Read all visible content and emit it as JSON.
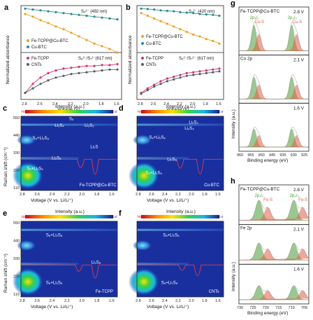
{
  "panels": {
    "a": {
      "letter": "a",
      "ylabel": "Normalized absorbance",
      "xlabel": "Voltage (V)",
      "xticks": [
        "2.8",
        "2.6",
        "2.4",
        "2.2",
        "2.0",
        "1.8",
        "1.6"
      ],
      "top_annotation": "S₆²⁻ (492 nm)",
      "bottom_annotation": "S₈²⁻/S₇²⁻(617 nm)",
      "legend_top": [
        "Fe-TCPP@Cu-BTC",
        "Cu-BTC"
      ],
      "legend_bottom": [
        "Fe-TCPP",
        "CNTs"
      ]
    },
    "b": {
      "letter": "b",
      "ylabel": "Normalized absorbance",
      "xlabel": "Voltage (V)",
      "xticks": [
        "2.8",
        "2.6",
        "2.4",
        "2.2",
        "2.0",
        "1.8",
        "1.6"
      ],
      "top_annotation": "S₃²⁻ (420 nm)",
      "bottom_annotation": "S₈²⁻/S₇²⁻ (617 nm)",
      "legend_top": [
        "Fe-TCPP@Cu-BTC",
        "Cu-BTC"
      ],
      "legend_bottom": [
        "Fe-TCPP",
        "CNTs"
      ]
    },
    "c": {
      "letter": "c",
      "title": "Intensity (a.u.)",
      "cb_min": "755.0",
      "cb_max": "0.0",
      "ylabel": "Raman shift (cm⁻¹)",
      "xlabel": "Voltage (V vs. Li/Li⁺)",
      "yticks": [
        "550",
        "440",
        "330",
        "220",
        "110"
      ],
      "xticks": [
        "2.8",
        "2.6",
        "2.4",
        "2.2",
        "2.0",
        "1.8",
        "1.6"
      ],
      "labels": [
        "S₈",
        "Li₂S₄",
        "Li₂S₃",
        "S₈+Li₂S₈",
        "Li₂S",
        "Li₂S₈",
        "S₈+Li₂S₈"
      ],
      "sample": "Fe-TCPP@Cu-BTC"
    },
    "d": {
      "letter": "d",
      "title": "Intensity (a.u.)",
      "cb_min": "755.0",
      "cb_max": "0.0",
      "xlabel": "Voltage (V vs. Li/Li⁺)",
      "xticks": [
        "2.8",
        "2.6",
        "2.4",
        "2.2",
        "2.0",
        "1.8",
        "1.6"
      ],
      "labels": [
        "Li₂S₂",
        "Li₂S₄",
        "S₈+Li₂S₈",
        "Li₂S₈",
        "S₈+Li₂S₈"
      ],
      "sample": "Cu-BTC"
    },
    "e": {
      "letter": "e",
      "title": "Intensity (a.u.)",
      "cb_min": "755.0",
      "cb_max": "0.0",
      "ylabel": "Raman shift (cm⁻¹)",
      "xlabel": "Voltage (V vs. Li/Li⁺)",
      "yticks": [
        "550",
        "440",
        "330",
        "220",
        "110"
      ],
      "xticks": [
        "2.8",
        "2.6",
        "2.4",
        "2.2",
        "2.0",
        "1.8",
        "1.6"
      ],
      "labels": [
        "S₈+Li₂S₈",
        "Li₂S₈",
        "S₈+Li₂S₈"
      ],
      "sample": "Fe-TCPP"
    },
    "f": {
      "letter": "f",
      "title": "Intensity (a.u.)",
      "cb_min": "755.0",
      "cb_max": "0.0",
      "xlabel": "Voltage (V vs. Li/Li⁺)",
      "xticks": [
        "2.8",
        "2.6",
        "2.4",
        "2.2",
        "2.0",
        "1.8",
        "1.6"
      ],
      "labels": [
        "S₈+Li₂S₈",
        "S₈+Li₂S₈"
      ],
      "sample": "CNTs"
    },
    "g": {
      "letter": "g",
      "header": "Fe-TCPP@Cu-BTC",
      "voltages": [
        "2.8 V",
        "2.1 V",
        "1.6 V"
      ],
      "element": "Cu 2p",
      "peaks": [
        "2p₁/₂",
        "Cu-S",
        "2p₃/₂",
        "Cu-S"
      ],
      "ylabel": "Intensity (a.u.)",
      "xlabel": "Binding energy (eV)",
      "xticks": [
        "960",
        "955",
        "950",
        "945",
        "935",
        "930",
        "925"
      ]
    },
    "h": {
      "letter": "h",
      "header": "Fe-TCPP@Cu-BTC",
      "voltages": [
        "2.8 V",
        "2.1 V",
        "1.6 V"
      ],
      "element": "Fe 2p",
      "peaks": [
        "2p₁/₂",
        "Fe-S",
        "2p₃/₂",
        "Fe-S"
      ],
      "ylabel": "Intensity (a.u.)",
      "xlabel": "Binding energy (eV)",
      "xticks": [
        "730",
        "725",
        "720",
        "715",
        "710",
        "705"
      ]
    }
  },
  "colors": {
    "fe_tcpp_cu_btc": "#e8a321",
    "cu_btc": "#2a8c8c",
    "fe_tcpp": "#d2336e",
    "cnts": "#555a66",
    "xps_green": "#4a9a3a",
    "xps_red": "#e0604a"
  },
  "chart_data": [
    {
      "type": "line",
      "panel": "a",
      "x": [
        2.8,
        2.7,
        2.6,
        2.5,
        2.4,
        2.3,
        2.2,
        2.1,
        2.0,
        1.9,
        1.8,
        1.7,
        1.6
      ],
      "series": [
        {
          "name": "Fe-TCPP@Cu-BTC",
          "values": [
            0.93,
            0.9,
            0.86,
            0.83,
            0.79,
            0.76,
            0.72,
            0.68,
            0.64,
            0.6,
            0.57,
            0.54,
            0.5
          ]
        },
        {
          "name": "Cu-BTC",
          "values": [
            0.99,
            0.98,
            0.97,
            0.96,
            0.95,
            0.94,
            0.93,
            0.92,
            0.91,
            0.9,
            0.89,
            0.88,
            0.87
          ]
        },
        {
          "name": "Fe-TCPP",
          "values": [
            0.05,
            0.15,
            0.22,
            0.27,
            0.3,
            0.32,
            0.33,
            0.34,
            0.35,
            0.35,
            0.36,
            0.36,
            0.37
          ]
        },
        {
          "name": "CNTs",
          "values": [
            0.05,
            0.1,
            0.15,
            0.19,
            0.22,
            0.24,
            0.26,
            0.27,
            0.28,
            0.29,
            0.3,
            0.31,
            0.31
          ]
        }
      ]
    },
    {
      "type": "line",
      "panel": "b",
      "x": [
        2.8,
        2.7,
        2.6,
        2.5,
        2.4,
        2.3,
        2.2,
        2.1,
        2.0,
        1.9,
        1.8,
        1.7,
        1.6
      ],
      "series": [
        {
          "name": "Fe-TCPP@Cu-BTC",
          "values": [
            0.94,
            0.91,
            0.88,
            0.85,
            0.82,
            0.79,
            0.76,
            0.73,
            0.7,
            0.68,
            0.65,
            0.63,
            0.6
          ]
        },
        {
          "name": "Cu-BTC",
          "values": [
            0.99,
            0.985,
            0.98,
            0.97,
            0.965,
            0.96,
            0.95,
            0.945,
            0.94,
            0.93,
            0.925,
            0.92,
            0.91
          ]
        },
        {
          "name": "Fe-TCPP",
          "values": [
            0.05,
            0.1,
            0.14,
            0.18,
            0.21,
            0.23,
            0.25,
            0.27,
            0.28,
            0.29,
            0.3,
            0.31,
            0.32
          ]
        },
        {
          "name": "CNTs",
          "values": [
            0.04,
            0.08,
            0.12,
            0.15,
            0.18,
            0.2,
            0.22,
            0.24,
            0.25,
            0.26,
            0.27,
            0.28,
            0.29
          ]
        }
      ]
    }
  ]
}
